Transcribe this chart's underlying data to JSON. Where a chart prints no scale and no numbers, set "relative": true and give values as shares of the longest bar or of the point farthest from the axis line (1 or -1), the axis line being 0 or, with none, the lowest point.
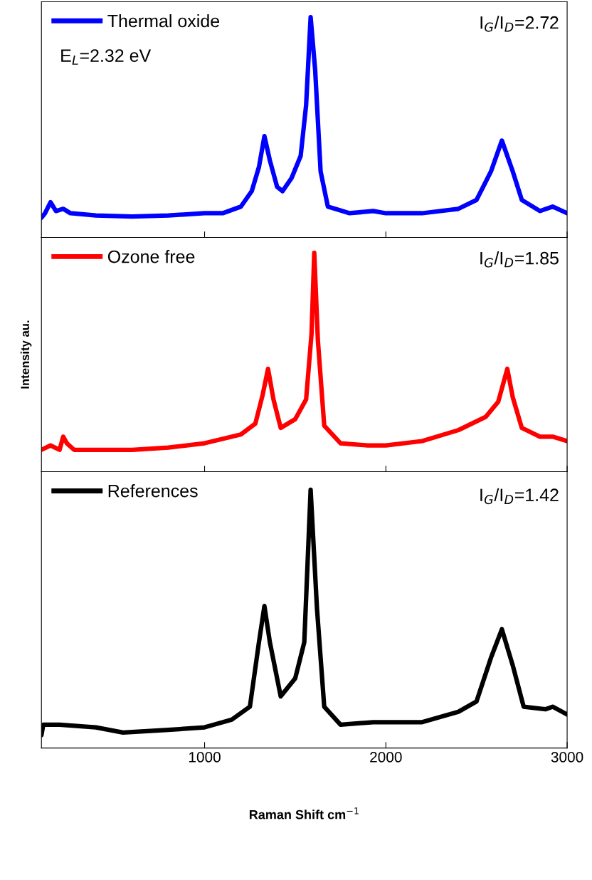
{
  "chart_data": [
    {
      "type": "line",
      "relative": true,
      "xlim": [
        100,
        3000
      ],
      "xticks": [
        1000,
        2000,
        3000
      ],
      "tick_labels": false,
      "legend": "top left",
      "grid": false,
      "marker": "none",
      "line_style": "solid",
      "annotations": [
        "I$_{G}$/I$_{D}$=2.72",
        "E$_{L}$=2.32 eV"
      ],
      "x": [
        100,
        120,
        150,
        180,
        220,
        260,
        400,
        600,
        800,
        1000,
        1100,
        1200,
        1260,
        1300,
        1330,
        1360,
        1400,
        1430,
        1480,
        1530,
        1560,
        1585,
        1610,
        1640,
        1680,
        1720,
        1800,
        1930,
        2000,
        2200,
        2400,
        2500,
        2580,
        2640,
        2700,
        2750,
        2850,
        2920,
        3000
      ],
      "series": [
        {
          "name": "Thermal oxide",
          "color": "#0000ff",
          "values": [
            0.09,
            0.11,
            0.16,
            0.12,
            0.13,
            0.11,
            0.1,
            0.095,
            0.1,
            0.11,
            0.11,
            0.14,
            0.21,
            0.32,
            0.46,
            0.35,
            0.23,
            0.21,
            0.27,
            0.37,
            0.6,
            1.0,
            0.76,
            0.3,
            0.14,
            0.13,
            0.11,
            0.12,
            0.11,
            0.11,
            0.13,
            0.17,
            0.3,
            0.44,
            0.3,
            0.17,
            0.12,
            0.14,
            0.11
          ]
        }
      ]
    },
    {
      "type": "line",
      "relative": true,
      "xlim": [
        100,
        3000
      ],
      "xticks": [
        1000,
        2000,
        3000
      ],
      "tick_labels": false,
      "legend": "top left",
      "grid": false,
      "marker": "none",
      "line_style": "solid",
      "ylabel": "Intensity au.",
      "annotations": [
        "I$_{G}$/I$_{D}$=1.85"
      ],
      "x": [
        100,
        150,
        200,
        220,
        240,
        280,
        400,
        600,
        800,
        1000,
        1200,
        1280,
        1320,
        1350,
        1380,
        1420,
        1500,
        1560,
        1590,
        1605,
        1625,
        1660,
        1750,
        1900,
        2000,
        2200,
        2400,
        2550,
        2620,
        2670,
        2700,
        2750,
        2850,
        2920,
        3000
      ],
      "series": [
        {
          "name": "Ozone free",
          "color": "#ff0000",
          "values": [
            0.1,
            0.12,
            0.1,
            0.16,
            0.13,
            0.1,
            0.1,
            0.1,
            0.11,
            0.13,
            0.17,
            0.22,
            0.35,
            0.47,
            0.33,
            0.2,
            0.24,
            0.33,
            0.63,
            1.0,
            0.6,
            0.21,
            0.13,
            0.12,
            0.12,
            0.14,
            0.19,
            0.25,
            0.32,
            0.47,
            0.34,
            0.2,
            0.16,
            0.16,
            0.14
          ]
        }
      ]
    },
    {
      "type": "line",
      "relative": true,
      "xlim": [
        100,
        3000
      ],
      "xticks": [
        1000,
        2000,
        3000
      ],
      "tick_labels": "x",
      "legend": "top left",
      "grid": false,
      "marker": "none",
      "line_style": "solid",
      "xlabel": "Raman Shift cm$^{−1}$",
      "annotations": [
        "I$_{G}$/I$_{D}$=1.42"
      ],
      "x": [
        100,
        110,
        200,
        400,
        550,
        800,
        1000,
        1150,
        1250,
        1300,
        1330,
        1360,
        1420,
        1500,
        1550,
        1585,
        1620,
        1660,
        1750,
        1930,
        2200,
        2400,
        2500,
        2580,
        2640,
        2700,
        2760,
        2880,
        2920,
        3000
      ],
      "series": [
        {
          "name": "References",
          "color": "#000000",
          "values": [
            0.05,
            0.09,
            0.09,
            0.08,
            0.06,
            0.07,
            0.08,
            0.11,
            0.16,
            0.41,
            0.55,
            0.41,
            0.2,
            0.27,
            0.41,
            1.0,
            0.54,
            0.16,
            0.09,
            0.1,
            0.1,
            0.14,
            0.18,
            0.35,
            0.46,
            0.32,
            0.16,
            0.15,
            0.16,
            0.13
          ]
        }
      ]
    }
  ]
}
